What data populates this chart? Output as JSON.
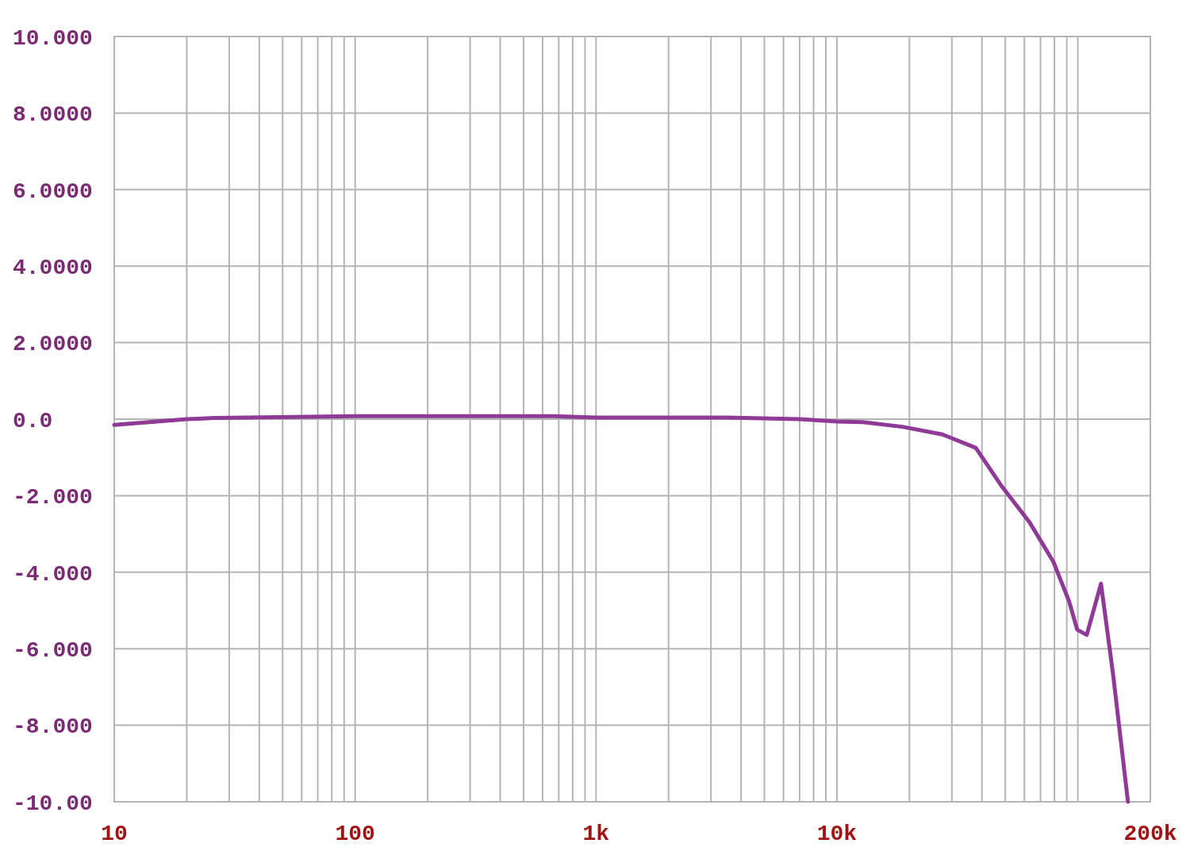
{
  "chart_data": {
    "type": "line",
    "log": "x",
    "grid": true,
    "marker": "none",
    "line_style": "solid",
    "xlim": [
      10,
      200000
    ],
    "ylim": [
      -10,
      10
    ],
    "xticks": [
      {
        "value": 10,
        "label": "10"
      },
      {
        "value": 20,
        "label": null
      },
      {
        "value": 30,
        "label": null
      },
      {
        "value": 40,
        "label": null
      },
      {
        "value": 50,
        "label": null
      },
      {
        "value": 60,
        "label": null
      },
      {
        "value": 70,
        "label": null
      },
      {
        "value": 80,
        "label": null
      },
      {
        "value": 90,
        "label": null
      },
      {
        "value": 100,
        "label": "100"
      },
      {
        "value": 200,
        "label": null
      },
      {
        "value": 300,
        "label": null
      },
      {
        "value": 400,
        "label": null
      },
      {
        "value": 500,
        "label": null
      },
      {
        "value": 600,
        "label": null
      },
      {
        "value": 700,
        "label": null
      },
      {
        "value": 800,
        "label": null
      },
      {
        "value": 900,
        "label": null
      },
      {
        "value": 1000,
        "label": "1k"
      },
      {
        "value": 2000,
        "label": null
      },
      {
        "value": 3000,
        "label": null
      },
      {
        "value": 4000,
        "label": null
      },
      {
        "value": 5000,
        "label": null
      },
      {
        "value": 6000,
        "label": null
      },
      {
        "value": 7000,
        "label": null
      },
      {
        "value": 8000,
        "label": null
      },
      {
        "value": 9000,
        "label": null
      },
      {
        "value": 10000,
        "label": "10k"
      },
      {
        "value": 20000,
        "label": null
      },
      {
        "value": 30000,
        "label": null
      },
      {
        "value": 40000,
        "label": null
      },
      {
        "value": 50000,
        "label": null
      },
      {
        "value": 60000,
        "label": null
      },
      {
        "value": 70000,
        "label": null
      },
      {
        "value": 80000,
        "label": null
      },
      {
        "value": 90000,
        "label": null
      },
      {
        "value": 100000,
        "label": null
      },
      {
        "value": 200000,
        "label": "200k"
      }
    ],
    "yticks": [
      {
        "value": 10,
        "label": "10.000"
      },
      {
        "value": 8,
        "label": "8.0000"
      },
      {
        "value": 6,
        "label": "6.0000"
      },
      {
        "value": 4,
        "label": "4.0000"
      },
      {
        "value": 2,
        "label": "2.0000"
      },
      {
        "value": 0,
        "label": "0.0"
      },
      {
        "value": -2,
        "label": "-2.000"
      },
      {
        "value": -4,
        "label": "-4.000"
      },
      {
        "value": -6,
        "label": "-6.000"
      },
      {
        "value": -8,
        "label": "-8.000"
      },
      {
        "value": -10,
        "label": "-10.00"
      }
    ],
    "series": [
      {
        "color": "#8e3a96",
        "x": [
          10,
          20,
          26,
          100,
          670,
          1000,
          3500,
          7000,
          10000,
          12800,
          18700,
          27400,
          37700,
          48400,
          63100,
          79200,
          92100,
          99400,
          108900,
          124800,
          139900,
          161500
        ],
        "values": [
          -0.15,
          0,
          0.03,
          0.08,
          0.08,
          0.04,
          0.04,
          0,
          -0.06,
          -0.08,
          -0.2,
          -0.4,
          -0.75,
          -1.76,
          -2.7,
          -3.73,
          -4.77,
          -5.5,
          -5.64,
          -4.3,
          -6.64,
          -10
        ]
      }
    ]
  }
}
